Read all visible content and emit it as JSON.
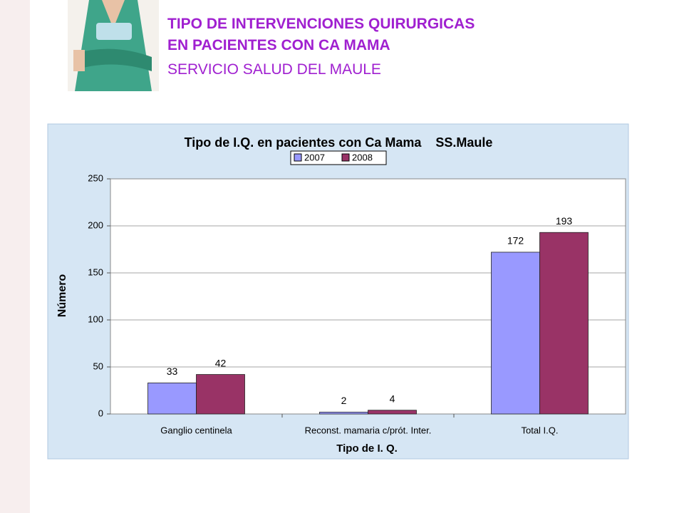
{
  "header": {
    "line1": "TIPO DE INTERVENCIONES QUIRURGICAS",
    "line2": "EN PACIENTES CON CA MAMA",
    "line3": "SERVICIO SALUD DEL MAULE"
  },
  "chart_data": {
    "type": "bar",
    "title": "Tipo de I.Q. en pacientes con Ca Mama    SS.Maule",
    "x_label": "Tipo de I. Q.",
    "y_label": "Número",
    "categories": [
      "Ganglio centinela",
      "Reconst. mamaria c/prót. Inter.",
      "Total I.Q."
    ],
    "series": [
      {
        "name": "2007",
        "color": "#9999ff",
        "values": [
          33,
          2,
          172
        ]
      },
      {
        "name": "2008",
        "color": "#993366",
        "values": [
          42,
          4,
          193
        ]
      }
    ],
    "ylim": [
      0,
      250
    ],
    "yticks": [
      0,
      50,
      100,
      150,
      200,
      250
    ],
    "grid": true,
    "legend": "top"
  }
}
